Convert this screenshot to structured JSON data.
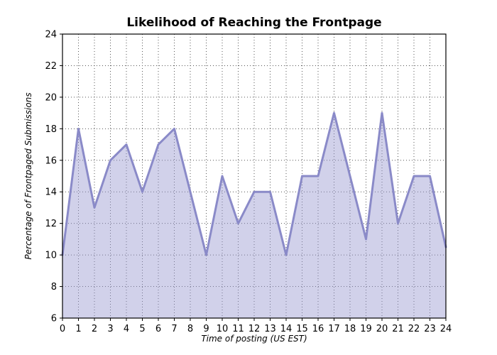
{
  "chart_data": {
    "type": "area",
    "title": "Likelihood of Reaching the Frontpage",
    "xlabel": "Time of posting (US EST)",
    "ylabel": "Percentage of Frontpaged Submissions",
    "x": [
      0,
      1,
      2,
      3,
      4,
      5,
      6,
      7,
      8,
      9,
      10,
      11,
      12,
      13,
      14,
      15,
      16,
      17,
      18,
      19,
      20,
      21,
      22,
      23,
      24
    ],
    "values": [
      10,
      18,
      13,
      16,
      17,
      14,
      17,
      18,
      14,
      10,
      15,
      12,
      14,
      14,
      10,
      15,
      15,
      19,
      15,
      11,
      19,
      12,
      15,
      15,
      10.5
    ],
    "xlim": [
      0,
      24
    ],
    "ylim": [
      6,
      24
    ],
    "xticks": [
      0,
      1,
      2,
      3,
      4,
      5,
      6,
      7,
      8,
      9,
      10,
      11,
      12,
      13,
      14,
      15,
      16,
      17,
      18,
      19,
      20,
      21,
      22,
      23,
      24
    ],
    "yticks": [
      6,
      8,
      10,
      12,
      14,
      16,
      18,
      20,
      22,
      24
    ],
    "grid": "dotted",
    "legend": "none",
    "line_color": "#8a8ac8",
    "fill_color": "#9a9ad0",
    "fill_opacity": 0.45,
    "background_color": "#ffffff"
  }
}
